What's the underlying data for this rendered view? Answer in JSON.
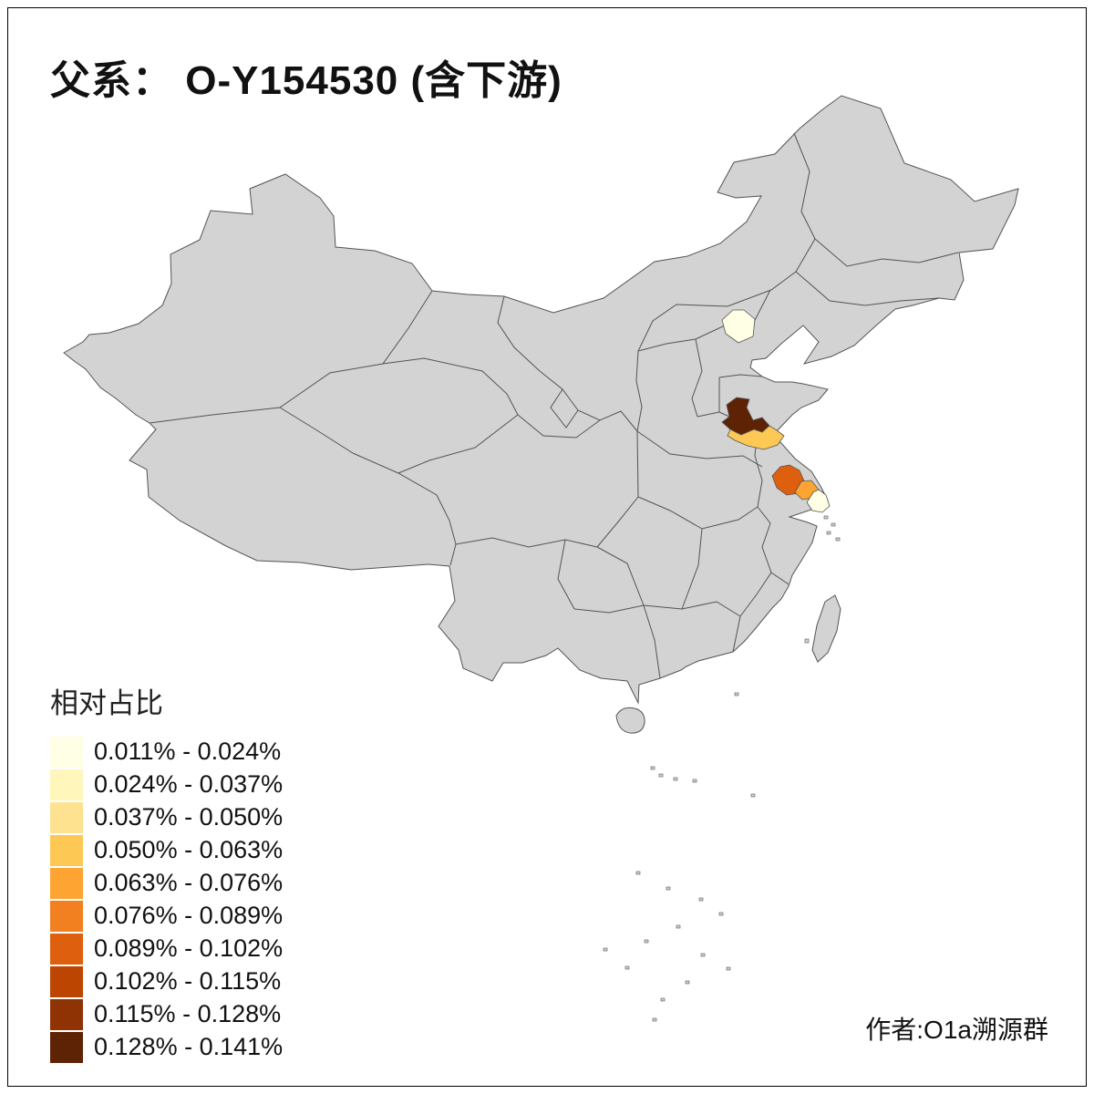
{
  "title": "父系： O-Y154530 (含下游)",
  "attribution": "作者:O1a溯源群",
  "legend": {
    "title": "相对占比",
    "items": [
      {
        "label": "0.011% - 0.024%",
        "color": "#FFFFE5"
      },
      {
        "label": "0.024% - 0.037%",
        "color": "#FFF6BC"
      },
      {
        "label": "0.037% - 0.050%",
        "color": "#FEE28F"
      },
      {
        "label": "0.050% - 0.063%",
        "color": "#FEC854"
      },
      {
        "label": "0.063% - 0.076%",
        "color": "#FEA432"
      },
      {
        "label": "0.076% - 0.089%",
        "color": "#F28021"
      },
      {
        "label": "0.089% - 0.102%",
        "color": "#DE5F0E"
      },
      {
        "label": "0.102% - 0.115%",
        "color": "#BC4502"
      },
      {
        "label": "0.115% - 0.128%",
        "color": "#8F3204"
      },
      {
        "label": "0.128% - 0.141%",
        "color": "#5E2204"
      }
    ]
  },
  "map": {
    "base_fill": "#D3D3D3",
    "border_color": "#545454",
    "regions": [
      {
        "name": "beijing",
        "bin": "0.011% - 0.024%",
        "color": "#FFFFE5"
      },
      {
        "name": "west-shandong",
        "bin": "0.128% - 0.141%",
        "color": "#5E2204"
      },
      {
        "name": "southwest-shandong",
        "bin": "0.050% - 0.063%",
        "color": "#FEC854"
      },
      {
        "name": "south-jiangsu-west",
        "bin": "0.089% - 0.102%",
        "color": "#DE5F0E"
      },
      {
        "name": "south-jiangsu-east",
        "bin": "0.063% - 0.076%",
        "color": "#FEA432"
      },
      {
        "name": "shanghai-area",
        "bin": "0.011% - 0.024%",
        "color": "#FFFFE5"
      }
    ]
  }
}
